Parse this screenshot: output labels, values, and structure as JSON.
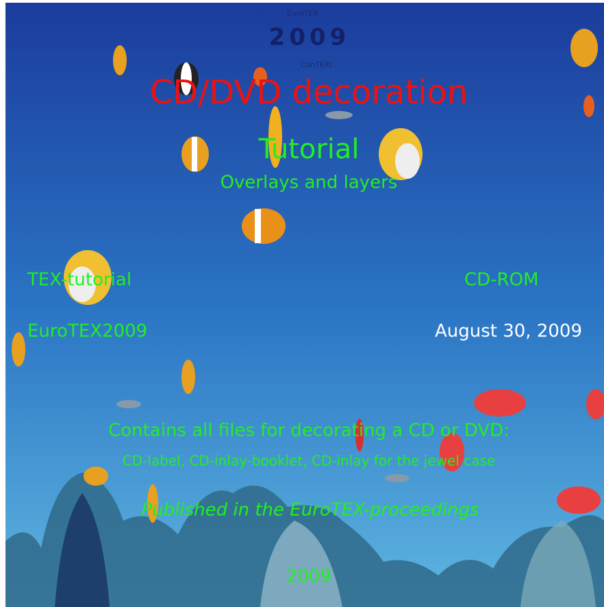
{
  "logo": {
    "top": "EuroTEX",
    "year": "2009",
    "bottom": "ConTEXt"
  },
  "title": "CD/DVD decoration",
  "subtitle": "Tutorial",
  "topic": "Overlays and layers",
  "left_1": "TEX-tutorial",
  "right_1": "CD-ROM",
  "left_2": "EuroTEX2009",
  "right_2": "August 30, 2009",
  "contents": "Contains all files for decorating a CD or DVD:",
  "contents_detail": "CD-label, CD-inlay-booklet, CD-inlay for the jewel case",
  "published": "Published in the EuroTEX-proceedings",
  "year": "2009"
}
